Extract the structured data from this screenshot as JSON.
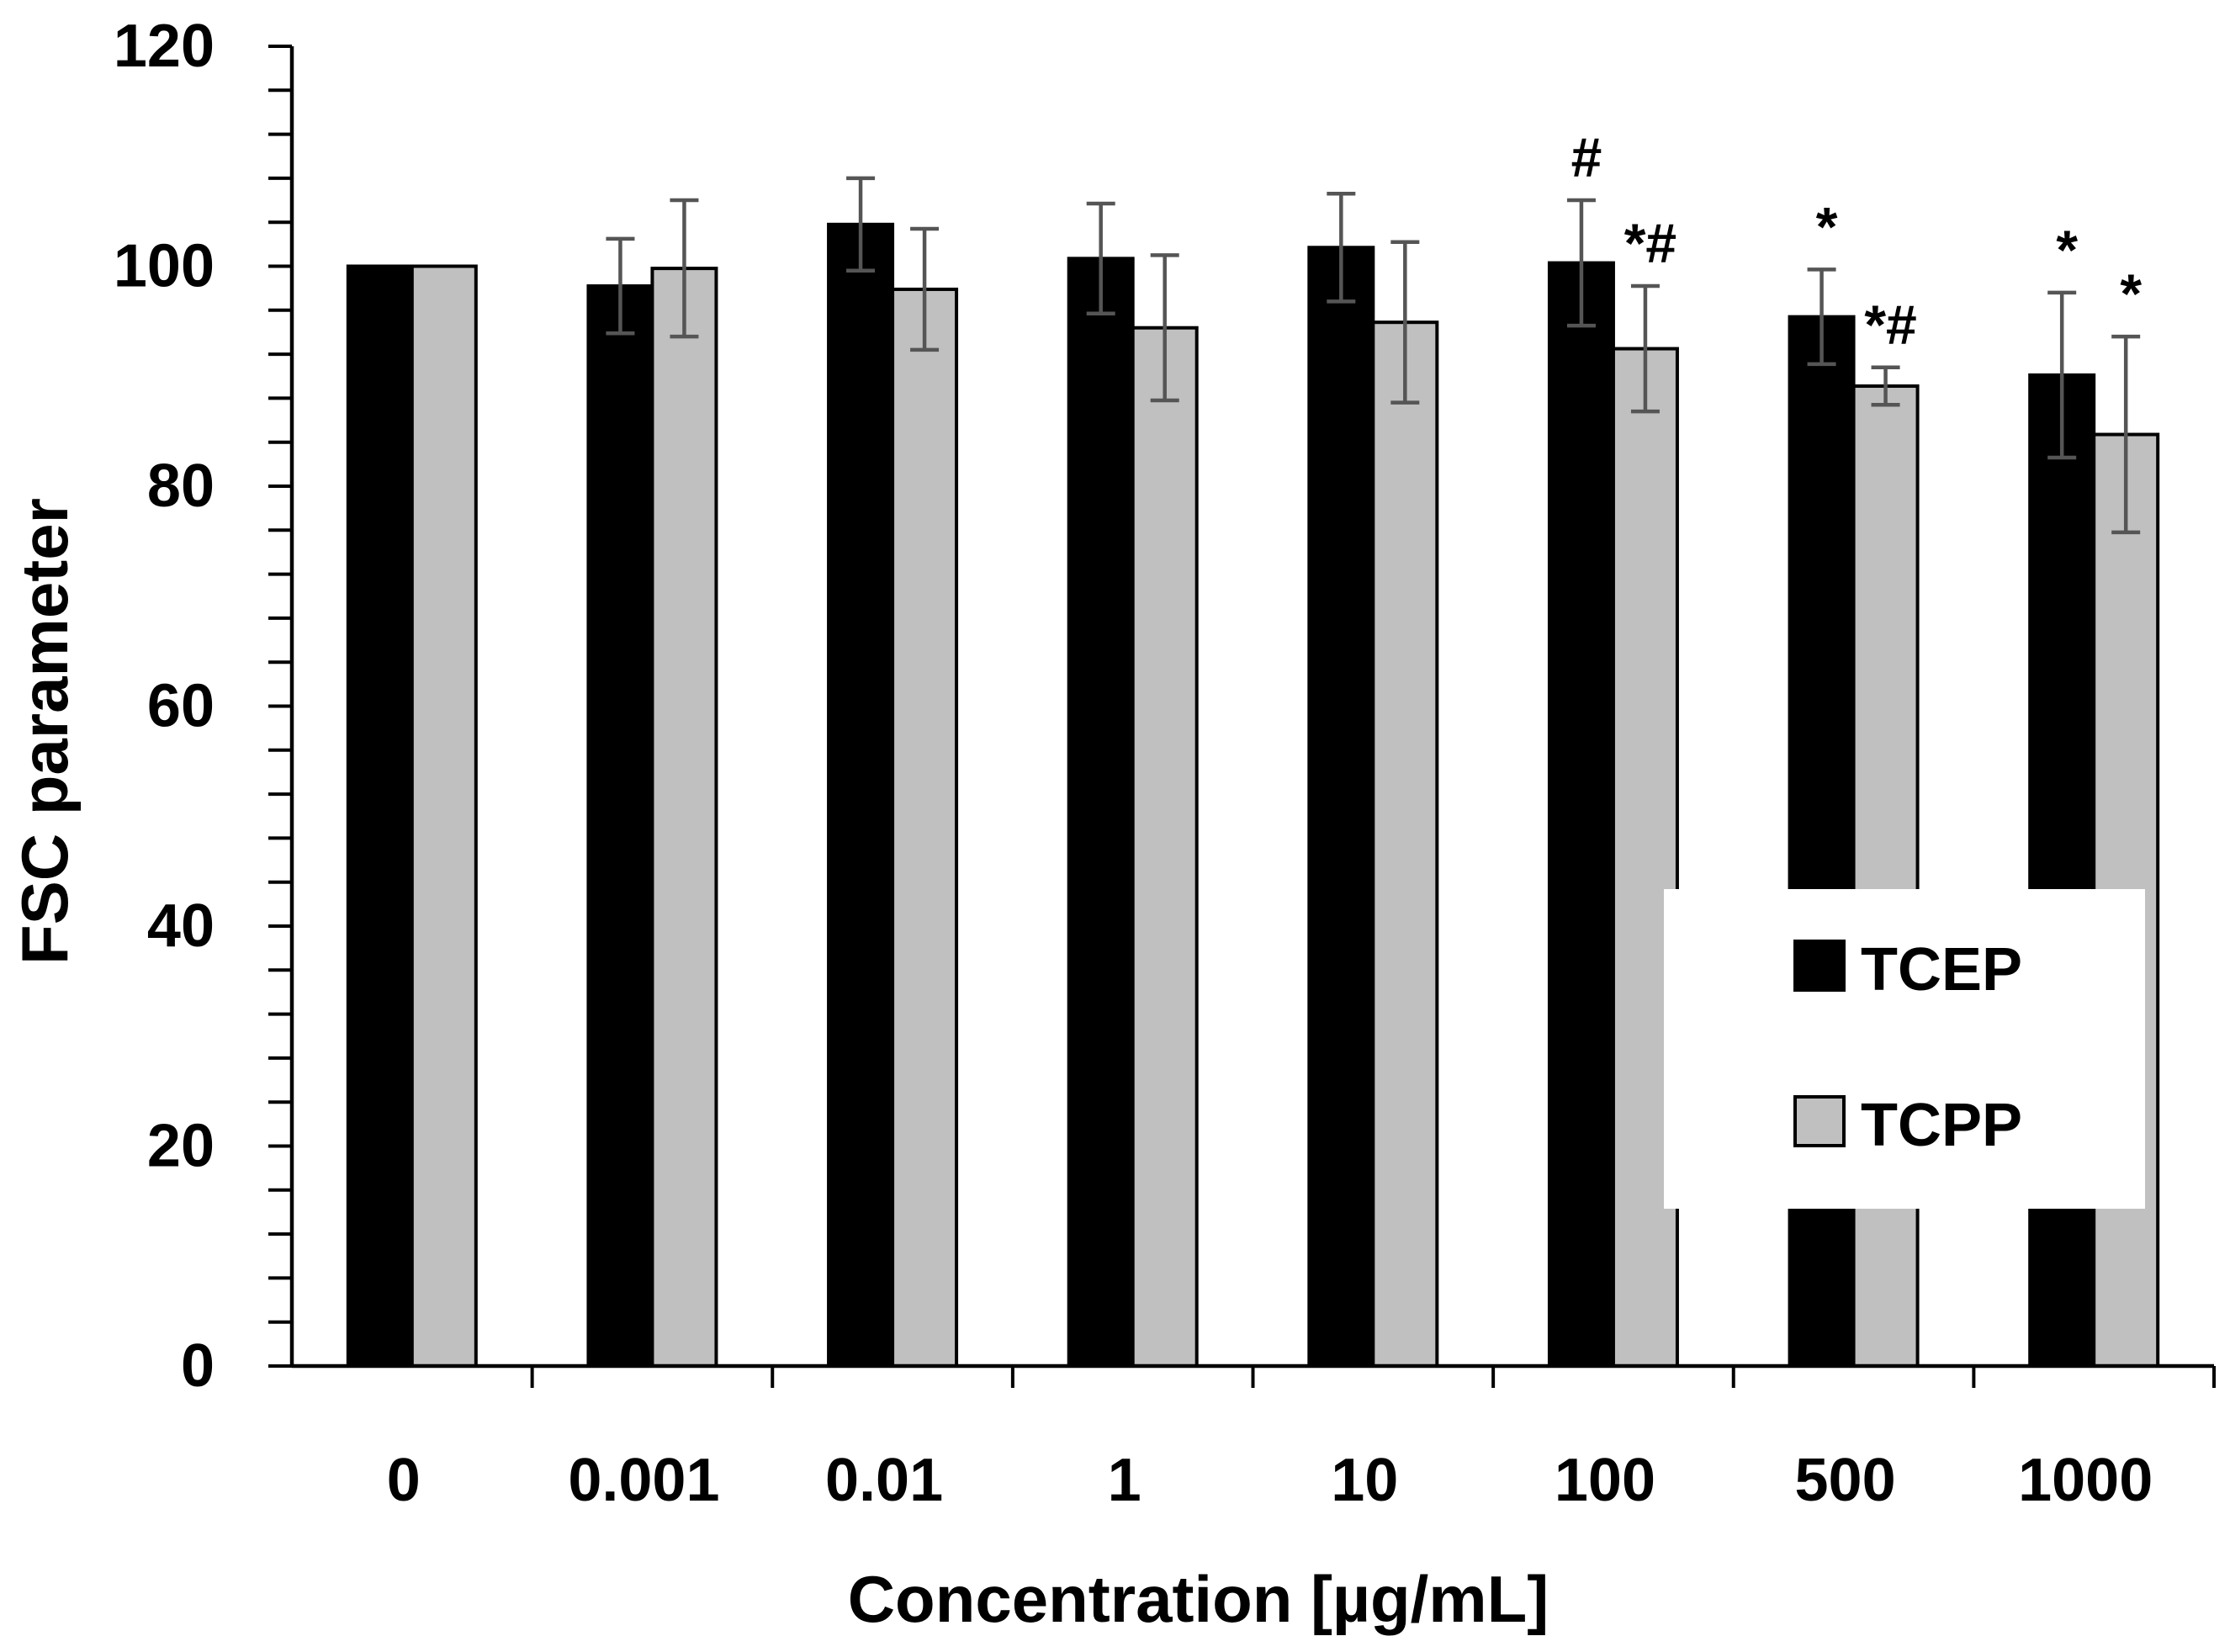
{
  "chart_data": {
    "type": "bar",
    "title": "",
    "xlabel": "Concentration [µg/mL]",
    "ylabel": "FSC parameter",
    "ylim": [
      0,
      120
    ],
    "ytick_step": 20,
    "ytick_labels": [
      "0",
      "20",
      "40",
      "60",
      "80",
      "100",
      "120"
    ],
    "grid": false,
    "legend_position": "bottom-right",
    "categories": [
      "0",
      "0.001",
      "0.01",
      "1",
      "10",
      "100",
      "500",
      "1000"
    ],
    "series": [
      {
        "name": "TCEP",
        "color": "#000000",
        "values": [
          100,
          98.2,
          103.8,
          100.7,
          101.7,
          100.3,
          95.4,
          90.1
        ],
        "errors": [
          0,
          4.3,
          4.2,
          5.0,
          4.9,
          5.7,
          4.3,
          7.5
        ],
        "annotations": [
          "",
          "",
          "",
          "",
          "",
          "#",
          "*",
          "*"
        ]
      },
      {
        "name": "TCPP",
        "color": "#c0c0c0",
        "values": [
          100,
          99.8,
          97.9,
          94.4,
          94.9,
          92.5,
          89.1,
          84.7
        ],
        "errors": [
          0,
          6.2,
          5.5,
          6.6,
          7.3,
          5.7,
          1.7,
          8.9
        ],
        "annotations": [
          "",
          "",
          "",
          "",
          "",
          "*#",
          "*#",
          "*"
        ]
      }
    ]
  }
}
